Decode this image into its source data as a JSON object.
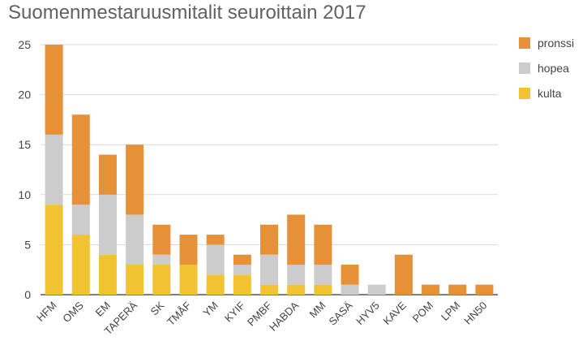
{
  "chart_data": {
    "type": "bar",
    "stacked": true,
    "title": "Suomenmestaruusmitalit seuroittain 2017",
    "xlabel": "",
    "ylabel": "",
    "ylim": [
      0,
      25
    ],
    "yticks": [
      0,
      5,
      10,
      15,
      20,
      25
    ],
    "grid": true,
    "legend_position": "right",
    "categories": [
      "HFM",
      "OMS",
      "EM",
      "TAPERÄ",
      "SK",
      "TMÅF",
      "YM",
      "KYIF",
      "PMBF",
      "HABDA",
      "MM",
      "SASÄ",
      "HYV5",
      "KAVE",
      "POM",
      "LPM",
      "HN50"
    ],
    "series": [
      {
        "name": "kulta",
        "color": "#f1c232",
        "values": [
          9,
          6,
          4,
          3,
          3,
          3,
          2,
          2,
          1,
          1,
          1,
          0,
          0,
          0,
          0,
          0,
          0
        ]
      },
      {
        "name": "hopea",
        "color": "#cccccc",
        "values": [
          7,
          3,
          6,
          5,
          1,
          0,
          3,
          1,
          3,
          2,
          2,
          1,
          1,
          0,
          0,
          0,
          0
        ]
      },
      {
        "name": "pronssi",
        "color": "#e69138",
        "values": [
          9,
          9,
          4,
          7,
          3,
          3,
          1,
          1,
          3,
          5,
          4,
          2,
          0,
          4,
          1,
          1,
          1
        ]
      }
    ],
    "legend_order": [
      "pronssi",
      "hopea",
      "kulta"
    ]
  }
}
